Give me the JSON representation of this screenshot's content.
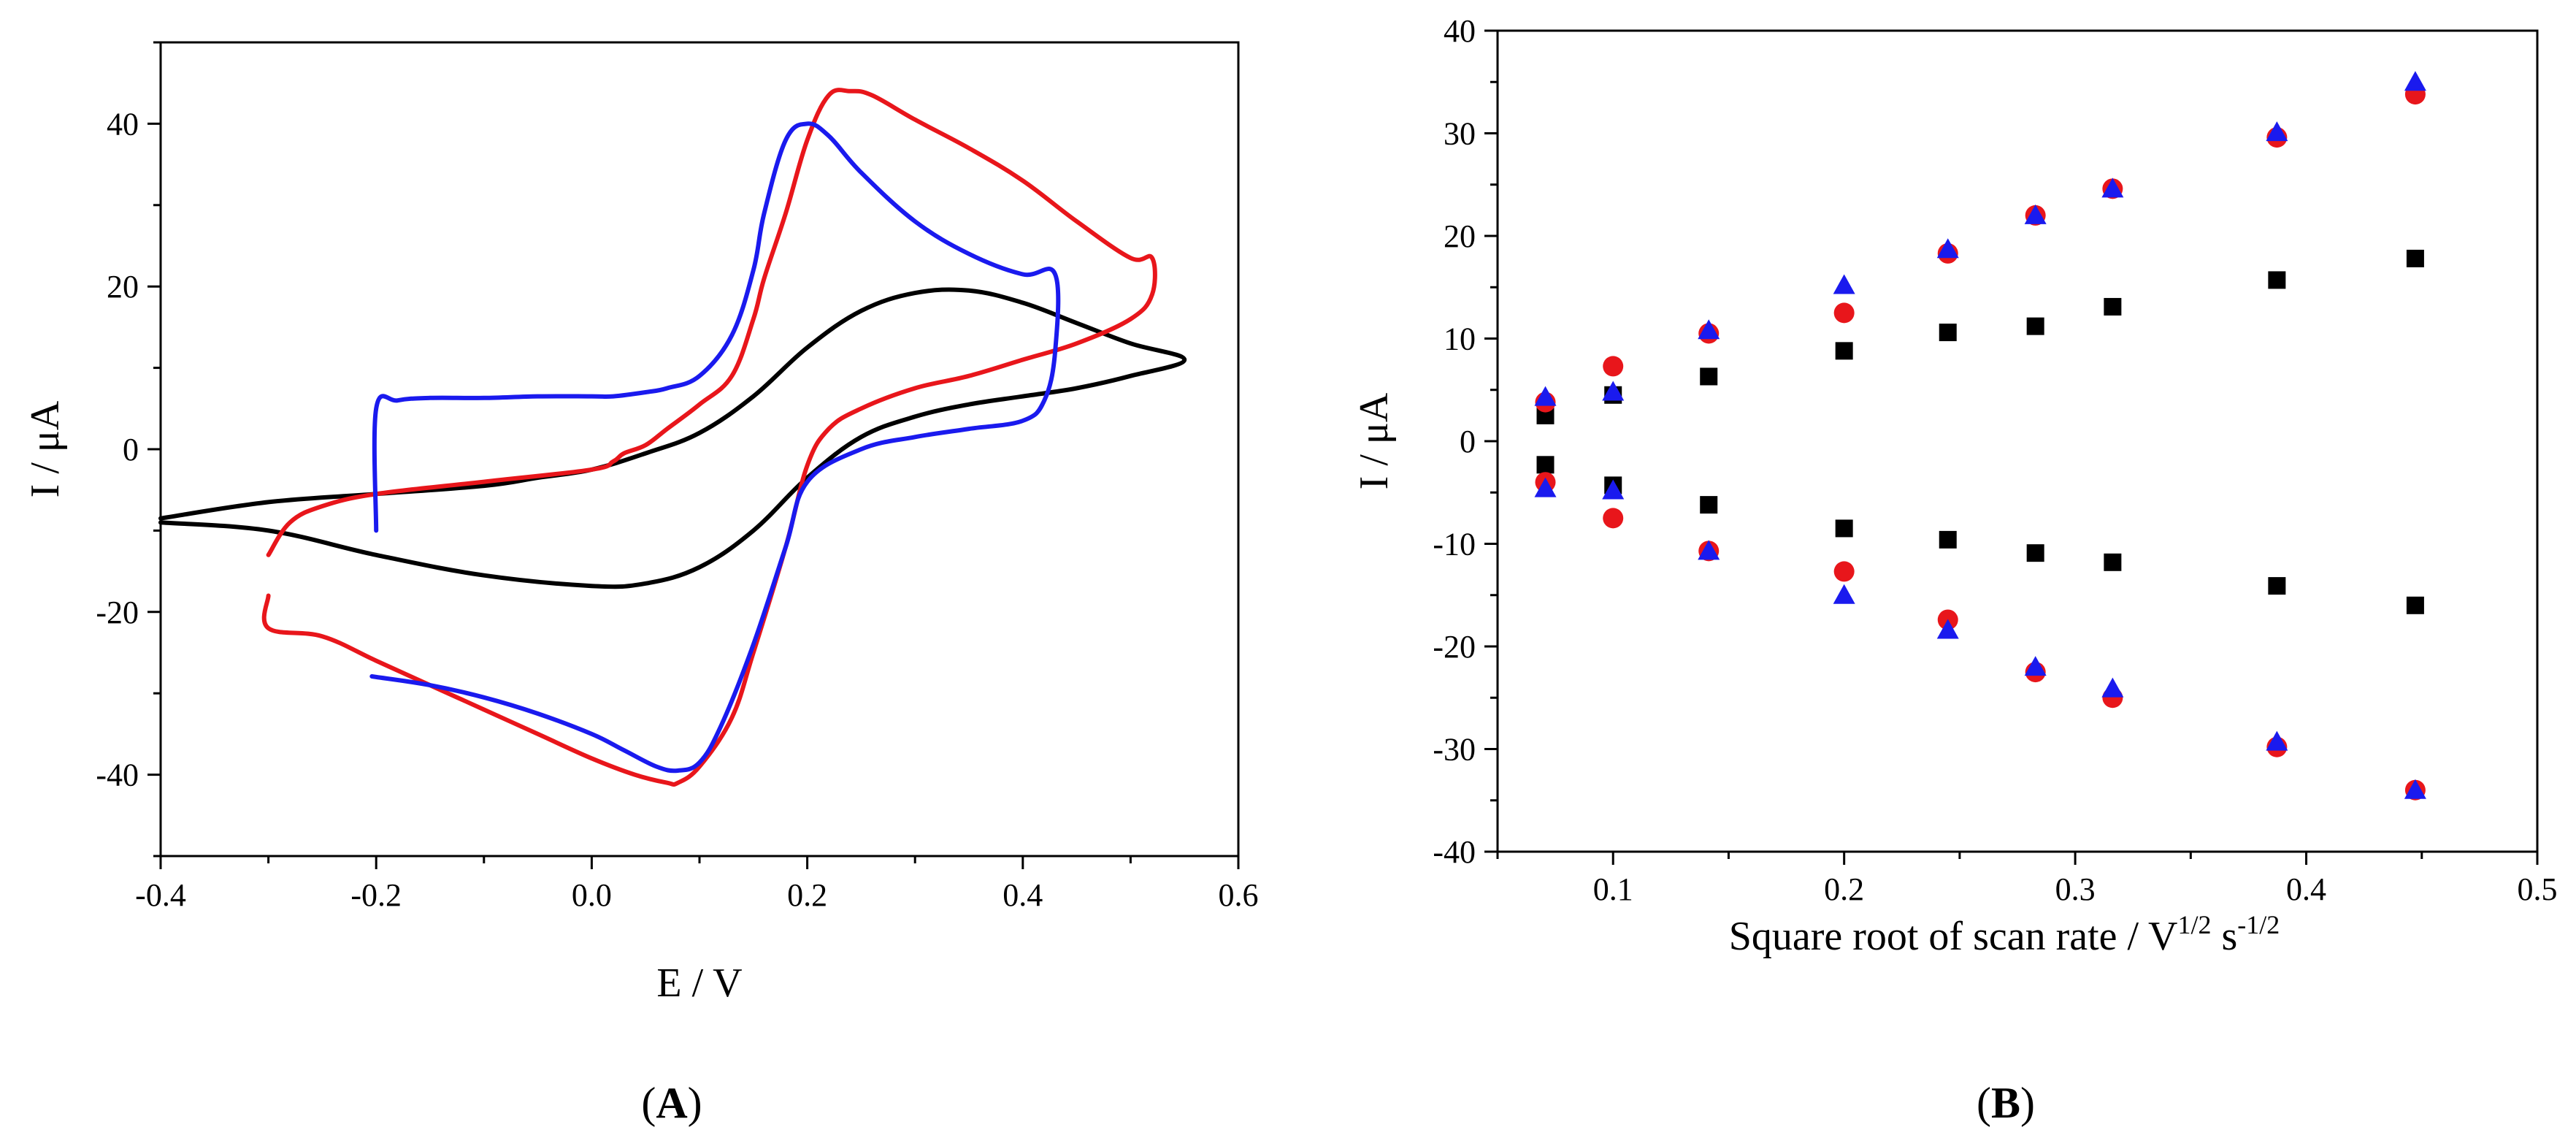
{
  "colors": {
    "black": "#000000",
    "red": "#e8161b",
    "blue": "#1a1aee"
  },
  "chart_data": [
    {
      "type": "line",
      "panel": "(A)",
      "panel_letter": "A",
      "xlabel": "E / V",
      "ylabel": "I / μA",
      "xlim": [
        -0.4,
        0.6
      ],
      "ylim": [
        -50,
        50
      ],
      "xticks": [
        -0.4,
        -0.2,
        0.0,
        0.2,
        0.4,
        0.6
      ],
      "xtick_labels": [
        "-0.4",
        "-0.2",
        "0.0",
        "0.2",
        "0.4",
        "0.6"
      ],
      "yticks": [
        -40,
        -20,
        0,
        20,
        40
      ],
      "ytick_labels": [
        "-40",
        "-20",
        "0",
        "20",
        "40"
      ],
      "grid": false,
      "series": [
        {
          "name": "black",
          "color": "#000000",
          "x": [
            -0.4,
            -0.3,
            -0.2,
            -0.1,
            0.0,
            0.05,
            0.1,
            0.15,
            0.2,
            0.25,
            0.3,
            0.35,
            0.4,
            0.45,
            0.5,
            0.55,
            0.5,
            0.45,
            0.4,
            0.35,
            0.3,
            0.25,
            0.2,
            0.15,
            0.1,
            0.05,
            0.0,
            -0.05,
            -0.1,
            -0.2,
            -0.3,
            -0.4
          ],
          "y": [
            -9,
            -10,
            -13,
            -15.5,
            -16.8,
            -16.5,
            -14.5,
            -10,
            -3.5,
            1.5,
            4,
            5.5,
            6.5,
            7.5,
            9,
            11,
            13,
            15.5,
            18,
            19.5,
            19.2,
            17,
            12.5,
            6.5,
            2,
            -0.5,
            -2.5,
            -3.5,
            -4.5,
            -5.5,
            -6.5,
            -8.5
          ]
        },
        {
          "name": "red",
          "color": "#e8161b",
          "x": [
            -0.3,
            -0.3,
            -0.25,
            -0.2,
            -0.15,
            -0.1,
            -0.05,
            0.0,
            0.04,
            0.07,
            0.08,
            0.1,
            0.13,
            0.15,
            0.18,
            0.2,
            0.22,
            0.25,
            0.3,
            0.35,
            0.4,
            0.45,
            0.5,
            0.52,
            0.52,
            0.5,
            0.45,
            0.4,
            0.35,
            0.3,
            0.26,
            0.24,
            0.22,
            0.2,
            0.18,
            0.16,
            0.15,
            0.13,
            0.1,
            0.07,
            0.05,
            0.03,
            0.02,
            0.0,
            -0.1,
            -0.2,
            -0.25,
            -0.28,
            -0.3
          ],
          "y": [
            -18,
            -22,
            -23,
            -26,
            -29,
            -32,
            -35,
            -38,
            -40,
            -41,
            -41,
            -39,
            -33,
            -25,
            -12,
            -2,
            2.5,
            5,
            7.5,
            9,
            11,
            13,
            16,
            19,
            23.5,
            23.5,
            28,
            33,
            37,
            40.5,
            43.5,
            44,
            43.5,
            38,
            29,
            21,
            16,
            9,
            5.5,
            2.5,
            0.5,
            -0.5,
            -1.5,
            -2.5,
            -4,
            -5.5,
            -7,
            -9,
            -13
          ]
        },
        {
          "name": "blue",
          "color": "#1a1aee",
          "x": [
            -0.2,
            -0.2,
            -0.15,
            -0.1,
            -0.05,
            0.0,
            0.03,
            0.06,
            0.08,
            0.1,
            0.12,
            0.15,
            0.18,
            0.2,
            0.25,
            0.3,
            0.35,
            0.4,
            0.42,
            0.43,
            0.43,
            0.4,
            0.35,
            0.3,
            0.25,
            0.22,
            0.2,
            0.18,
            0.16,
            0.15,
            0.13,
            0.1,
            0.07,
            0.05,
            0.02,
            0.0,
            -0.05,
            -0.1,
            -0.15,
            -0.18,
            -0.2,
            -0.2
          ],
          "y": [
            -28,
            -28,
            -29,
            -30.5,
            -32.5,
            -35,
            -37,
            -39,
            -39.5,
            -38.5,
            -34,
            -24,
            -12,
            -4,
            0,
            1.5,
            2.5,
            3.5,
            6,
            12,
            21.5,
            21.5,
            24,
            28,
            34,
            38.5,
            40,
            38,
            29,
            22,
            14,
            9,
            7.5,
            7,
            6.5,
            6.5,
            6.5,
            6.3,
            6.3,
            6,
            5,
            -10
          ]
        }
      ]
    },
    {
      "type": "scatter",
      "panel": "(B)",
      "panel_letter": "B",
      "xlabel": "Square root of scan rate / V",
      "xlabel_sup1": "1/2",
      "xlabel_mid": " s",
      "xlabel_sup2": "-1/2",
      "ylabel": "I / μA",
      "xlim": [
        0.05,
        0.5
      ],
      "ylim": [
        -40,
        40
      ],
      "xticks": [
        0.1,
        0.2,
        0.3,
        0.4,
        0.5
      ],
      "xtick_labels": [
        "0.1",
        "0.2",
        "0.3",
        "0.4",
        "0.5"
      ],
      "yticks": [
        -40,
        -30,
        -20,
        -10,
        0,
        10,
        20,
        30,
        40
      ],
      "ytick_labels": [
        "-40",
        "-30",
        "-20",
        "-10",
        "0",
        "10",
        "20",
        "30",
        "40"
      ],
      "grid": false,
      "series": [
        {
          "name": "squares",
          "marker": "square",
          "color": "#000000",
          "x": [
            0.0707,
            0.1,
            0.1414,
            0.2,
            0.2449,
            0.2828,
            0.3162,
            0.3873,
            0.4472,
            0.0707,
            0.1,
            0.1414,
            0.2,
            0.2449,
            0.2828,
            0.3162,
            0.3873,
            0.4472
          ],
          "y": [
            2.5,
            4.5,
            6.3,
            8.8,
            10.6,
            11.2,
            13.1,
            15.7,
            17.8,
            -2.3,
            -4.3,
            -6.2,
            -8.5,
            -9.6,
            -10.9,
            -11.8,
            -14.1,
            -16.0
          ]
        },
        {
          "name": "circles",
          "marker": "circle",
          "color": "#e8161b",
          "x": [
            0.0707,
            0.1,
            0.1414,
            0.2,
            0.2449,
            0.2828,
            0.3162,
            0.3873,
            0.4472,
            0.0707,
            0.1,
            0.1414,
            0.2,
            0.2449,
            0.2828,
            0.3162,
            0.3873,
            0.4472
          ],
          "y": [
            3.8,
            7.3,
            10.5,
            12.5,
            18.3,
            22.0,
            24.6,
            29.6,
            33.8,
            -4.0,
            -7.5,
            -10.7,
            -12.7,
            -17.4,
            -22.5,
            -25.0,
            -29.8,
            -34.0
          ]
        },
        {
          "name": "triangles",
          "marker": "triangle",
          "color": "#1a1aee",
          "x": [
            0.0707,
            0.1,
            0.1414,
            0.2,
            0.2449,
            0.2828,
            0.3162,
            0.3873,
            0.4472,
            0.0707,
            0.1,
            0.1414,
            0.2,
            0.2449,
            0.2828,
            0.3162,
            0.3873,
            0.4472
          ],
          "y": [
            4.3,
            4.8,
            10.8,
            15.2,
            18.7,
            22.0,
            24.6,
            30.1,
            35.0,
            -4.6,
            -4.8,
            -10.7,
            -15.0,
            -18.4,
            -22.0,
            -24.1,
            -29.3,
            -34.0
          ]
        }
      ]
    }
  ]
}
